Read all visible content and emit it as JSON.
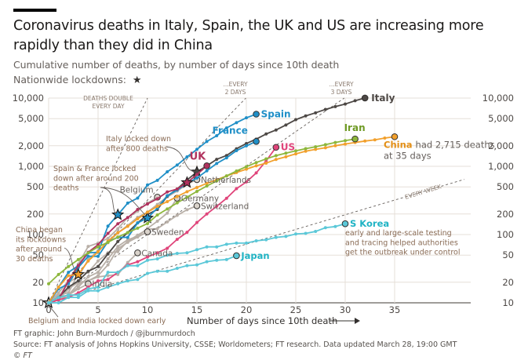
{
  "header": {
    "title": "Coronavirus deaths in Italy, Spain, the UK and US are increasing more rapidly than they did in China",
    "subtitle": "Cumulative number of deaths, by number of days since 10th death",
    "lockdown_legend": "Nationwide lockdowns:",
    "lockdown_icon": "★"
  },
  "footer": {
    "credit": "FT graphic: John Burn-Murdoch / @jburnmurdoch",
    "source": "Source: FT analysis of Johns Hopkins University, CSSE; Worldometers; FT research. Data updated March 28, 19:00 GMT",
    "copyright": "© FT"
  },
  "chart_data": {
    "type": "line",
    "title": "Coronavirus deaths in Italy, Spain, the UK and US are increasing more rapidly than they did in China",
    "xlabel": "Number of days since 10th death",
    "ylabel": "Cumulative number of deaths",
    "yscale": "log",
    "xlim": [
      0,
      42
    ],
    "ylim": [
      10,
      10000
    ],
    "xticks": [
      0,
      5,
      10,
      15,
      20,
      25,
      30,
      35
    ],
    "yticks": [
      10,
      20,
      50,
      100,
      200,
      500,
      1000,
      2000,
      5000,
      10000
    ],
    "ytick_labels": [
      "10",
      "20",
      "50",
      "100",
      "200",
      "500",
      "1,000",
      "2,000",
      "5,000",
      "10,000"
    ],
    "grid": true,
    "reference_lines": [
      {
        "label": "DEATHS DOUBLE EVERY DAY",
        "doubling_days": 1
      },
      {
        "label": "...EVERY 2 DAYS",
        "doubling_days": 2
      },
      {
        "label": "...EVERY 3 DAYS",
        "doubling_days": 3
      },
      {
        "label": "EVERY WEEK",
        "doubling_days": 7
      }
    ],
    "series": [
      {
        "name": "Italy",
        "color": "#4d4845",
        "highlight": true,
        "label": "Italy",
        "x": [
          0,
          1,
          2,
          3,
          4,
          5,
          6,
          7,
          8,
          9,
          10,
          11,
          12,
          13,
          14,
          15,
          16,
          17,
          18,
          19,
          20,
          21,
          22,
          23,
          24,
          25,
          26,
          27,
          28,
          29,
          30,
          31,
          32
        ],
        "y": [
          10,
          12,
          17,
          21,
          29,
          34,
          52,
          79,
          107,
          148,
          197,
          233,
          366,
          463,
          631,
          827,
          1016,
          1266,
          1441,
          1809,
          2158,
          2503,
          2978,
          3405,
          4032,
          4825,
          5476,
          6077,
          6820,
          7503,
          8165,
          9134,
          10023
        ],
        "lockdown_day": 15
      },
      {
        "name": "Spain",
        "color": "#1f8fc7",
        "highlight": true,
        "label": "Spain",
        "x": [
          0,
          1,
          2,
          3,
          4,
          5,
          6,
          7,
          8,
          9,
          10,
          11,
          12,
          13,
          14,
          15,
          16,
          17,
          18,
          19,
          20,
          21
        ],
        "y": [
          10,
          17,
          28,
          35,
          54,
          55,
          133,
          195,
          289,
          342,
          533,
          623,
          830,
          1043,
          1375,
          1772,
          2311,
          2808,
          3647,
          4365,
          5138,
          5812
        ],
        "lockdown_day": 7
      },
      {
        "name": "France",
        "color": "#1f8fc7",
        "highlight": true,
        "label": "France",
        "x": [
          0,
          1,
          2,
          3,
          4,
          5,
          6,
          7,
          8,
          9,
          10,
          11,
          12,
          13,
          14,
          15,
          16,
          17,
          18,
          19,
          20,
          21
        ],
        "y": [
          10,
          16,
          19,
          33,
          48,
          48,
          79,
          91,
          91,
          148,
          175,
          244,
          372,
          450,
          562,
          674,
          860,
          1100,
          1331,
          1696,
          1995,
          2314
        ],
        "lockdown_day": 10
      },
      {
        "name": "UK",
        "color": "#b0325e",
        "highlight": true,
        "label": "UK",
        "x": [
          0,
          1,
          2,
          3,
          4,
          5,
          6,
          7,
          8,
          9,
          10,
          11,
          12,
          13,
          14,
          15,
          16
        ],
        "y": [
          10,
          11,
          21,
          35,
          55,
          71,
          104,
          144,
          177,
          233,
          281,
          335,
          422,
          465,
          578,
          759,
          1019
        ],
        "lockdown_day": 14
      },
      {
        "name": "US",
        "color": "#e0457b",
        "highlight": true,
        "label": "US",
        "x": [
          0,
          1,
          2,
          3,
          4,
          5,
          6,
          7,
          8,
          9,
          10,
          11,
          12,
          13,
          14,
          15,
          16,
          17,
          18,
          19,
          20,
          21,
          22,
          23
        ],
        "y": [
          10,
          11,
          12,
          14,
          17,
          21,
          22,
          28,
          36,
          40,
          47,
          54,
          63,
          85,
          108,
          150,
          200,
          260,
          340,
          471,
          590,
          800,
          1200,
          1900
        ]
      },
      {
        "name": "China",
        "color": "#f2a02c",
        "highlight": true,
        "label": "China had 2,715 deaths at 35 days",
        "x": [
          0,
          1,
          2,
          3,
          4,
          5,
          6,
          7,
          8,
          9,
          10,
          11,
          12,
          13,
          14,
          15,
          16,
          17,
          18,
          19,
          20,
          21,
          22,
          23,
          24,
          25,
          26,
          27,
          28,
          29,
          30,
          31,
          32,
          33,
          34,
          35
        ],
        "y": [
          10,
          17,
          25,
          26,
          41,
          56,
          80,
          106,
          132,
          170,
          213,
          259,
          304,
          361,
          425,
          490,
          563,
          636,
          722,
          811,
          908,
          1016,
          1113,
          1259,
          1380,
          1523,
          1665,
          1770,
          1868,
          2004,
          2118,
          2236,
          2345,
          2442,
          2592,
          2715
        ],
        "lockdown_day": 3
      },
      {
        "name": "Iran",
        "color": "#8db73c",
        "highlight": true,
        "label": "Iran",
        "x": [
          0,
          1,
          2,
          3,
          4,
          5,
          6,
          7,
          8,
          9,
          10,
          11,
          12,
          13,
          14,
          15,
          16,
          17,
          18,
          19,
          20,
          21,
          22,
          23,
          24,
          25,
          26,
          27,
          28,
          29,
          30,
          31
        ],
        "y": [
          19,
          26,
          34,
          43,
          54,
          66,
          77,
          92,
          107,
          124,
          145,
          194,
          237,
          291,
          354,
          429,
          514,
          611,
          724,
          853,
          988,
          1135,
          1284,
          1433,
          1556,
          1685,
          1812,
          1934,
          2077,
          2234,
          2378,
          2517
        ]
      },
      {
        "name": "Netherlands",
        "color": "#b9b0a8",
        "highlight": false,
        "label": "Netherlands",
        "x": [
          0,
          1,
          2,
          3,
          4,
          5,
          6,
          7,
          8,
          9,
          10,
          11,
          12,
          13,
          14,
          15
        ],
        "y": [
          10,
          12,
          20,
          24,
          43,
          58,
          76,
          106,
          136,
          179,
          213,
          276,
          356,
          434,
          546,
          639
        ]
      },
      {
        "name": "Germany",
        "color": "#b9b0a8",
        "highlight": false,
        "label": "Germany",
        "x": [
          0,
          1,
          2,
          3,
          4,
          5,
          6,
          7,
          8,
          9,
          10,
          11,
          12,
          13
        ],
        "y": [
          10,
          12,
          13,
          17,
          24,
          28,
          44,
          67,
          84,
          94,
          123,
          157,
          206,
          342
        ]
      },
      {
        "name": "Belgium",
        "color": "#b9b0a8",
        "highlight": false,
        "label": "Belgium",
        "x": [
          0,
          1,
          2,
          3,
          4,
          5,
          6,
          7,
          8,
          9,
          10,
          11
        ],
        "y": [
          10,
          14,
          21,
          37,
          67,
          75,
          88,
          122,
          178,
          220,
          289,
          353
        ],
        "lockdown_day": 0
      },
      {
        "name": "Switzerland",
        "color": "#b9b0a8",
        "highlight": false,
        "label": "Switzerland",
        "x": [
          0,
          1,
          2,
          3,
          4,
          5,
          6,
          7,
          8,
          9,
          10,
          11,
          12,
          13,
          14,
          15
        ],
        "y": [
          10,
          13,
          14,
          27,
          28,
          41,
          54,
          56,
          80,
          98,
          120,
          122,
          153,
          191,
          231,
          264
        ]
      },
      {
        "name": "Sweden",
        "color": "#b9b0a8",
        "highlight": false,
        "label": "Sweden",
        "x": [
          0,
          1,
          2,
          3,
          4,
          5,
          6,
          7,
          8,
          9,
          10
        ],
        "y": [
          10,
          11,
          16,
          20,
          21,
          25,
          36,
          62,
          77,
          92,
          110
        ]
      },
      {
        "name": "Canada",
        "color": "#b9b0a8",
        "highlight": false,
        "label": "Canada",
        "x": [
          0,
          1,
          2,
          3,
          4,
          5,
          6,
          7,
          8,
          9
        ],
        "y": [
          10,
          12,
          13,
          19,
          21,
          24,
          25,
          26,
          39,
          54
        ]
      },
      {
        "name": "India",
        "color": "#b9b0a8",
        "highlight": false,
        "label": "India",
        "x": [
          0,
          1,
          2,
          3,
          4
        ],
        "y": [
          10,
          11,
          13,
          16,
          19
        ],
        "lockdown_day": 0
      },
      {
        "name": "Japan",
        "color": "#5bc8d8",
        "highlight": true,
        "label": "Japan",
        "x": [
          0,
          1,
          2,
          3,
          4,
          5,
          6,
          7,
          8,
          9,
          10,
          11,
          12,
          13,
          14,
          15,
          16,
          17,
          18,
          19
        ],
        "y": [
          10,
          10,
          12,
          12,
          15,
          15,
          17,
          19,
          21,
          22,
          27,
          29,
          29,
          32,
          35,
          36,
          40,
          42,
          43,
          49
        ]
      },
      {
        "name": "S Korea",
        "color": "#5bc8d8",
        "highlight": true,
        "label": "S Korea",
        "x": [
          0,
          1,
          2,
          3,
          4,
          5,
          6,
          7,
          8,
          9,
          10,
          11,
          12,
          13,
          14,
          15,
          16,
          17,
          18,
          19,
          20,
          21,
          22,
          23,
          24,
          25,
          26,
          27,
          28,
          29,
          30
        ],
        "y": [
          10,
          12,
          13,
          13,
          16,
          17,
          28,
          28,
          35,
          35,
          42,
          44,
          50,
          53,
          54,
          60,
          66,
          66,
          72,
          75,
          75,
          81,
          84,
          91,
          94,
          102,
          104,
          111,
          126,
          131,
          144
        ]
      }
    ],
    "annotations": [
      {
        "text": "Italy locked down after 800 deaths"
      },
      {
        "text": "Spain & France locked down after around 200 deaths"
      },
      {
        "text": "China began its lockdowns after around 30 deaths"
      },
      {
        "text": "Belgium and India locked down early"
      },
      {
        "text": "early and large-scale testing and tracing helped authorities get the outbreak under control"
      }
    ],
    "legend": "inline labels"
  }
}
